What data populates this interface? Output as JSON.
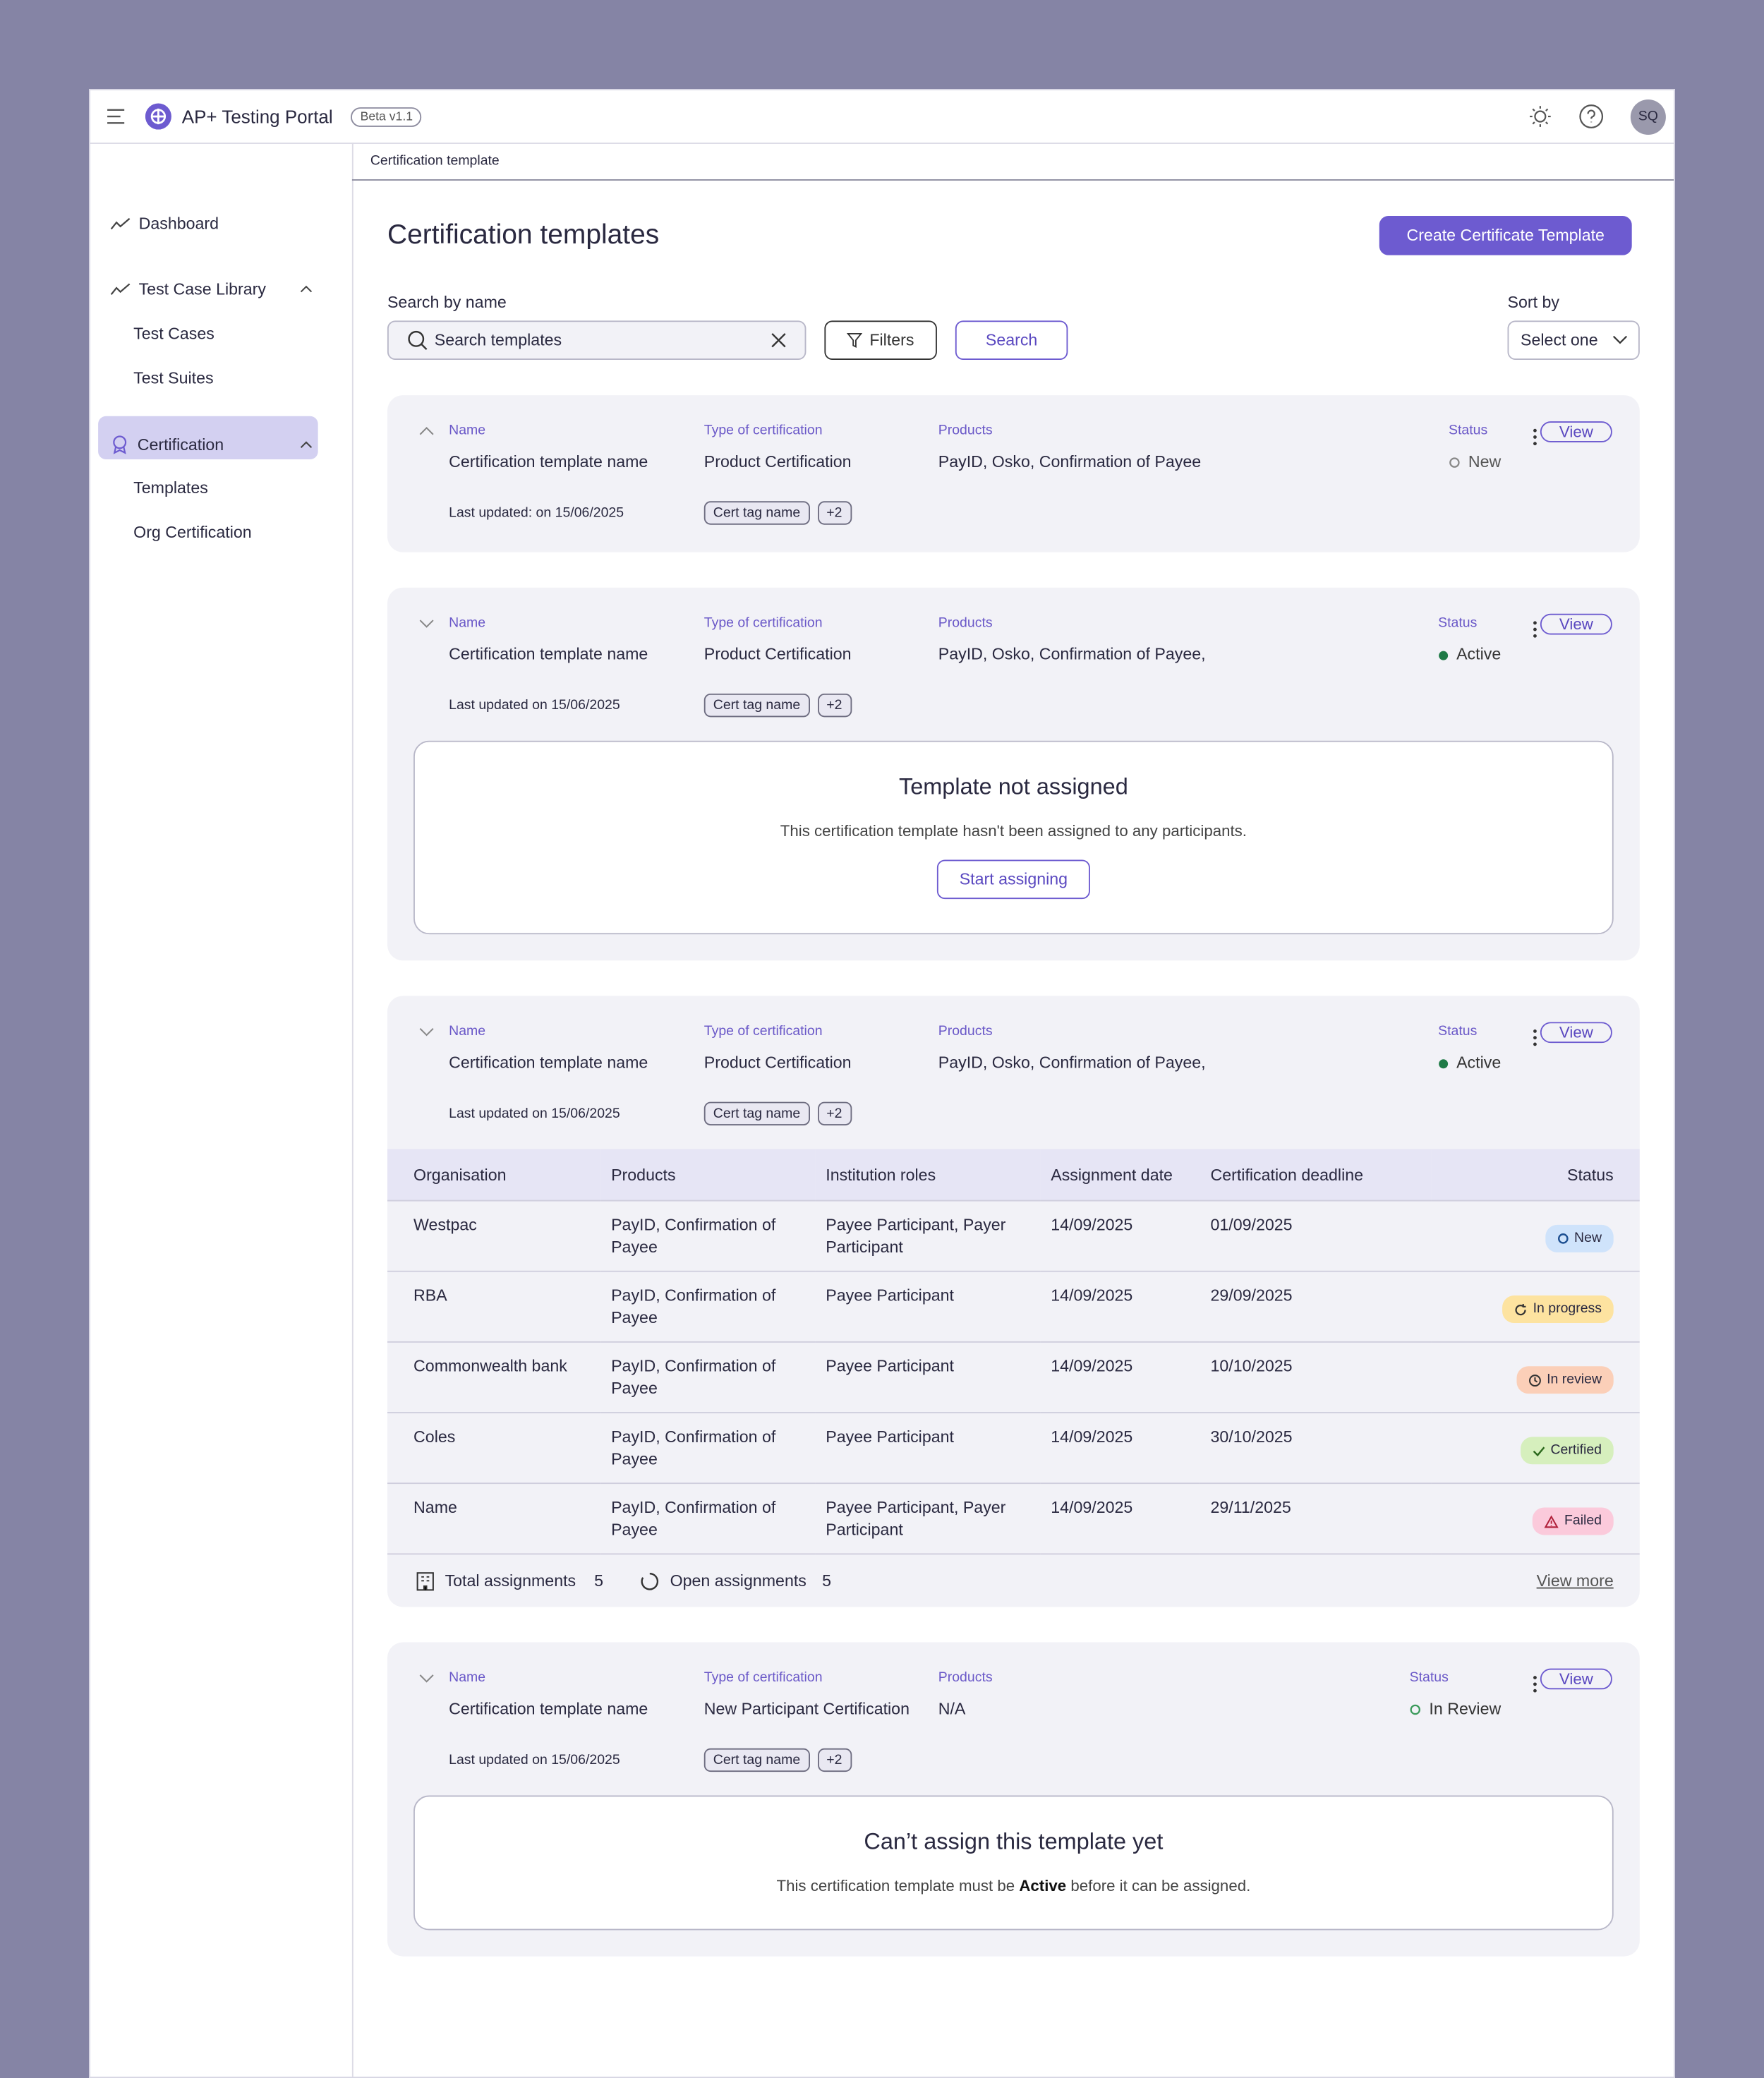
{
  "header": {
    "app_name": "AP+ Testing Portal",
    "badge": "Beta v1.1",
    "avatar": "SQ"
  },
  "sidebar": {
    "items": [
      {
        "label": "Dashboard"
      },
      {
        "label": "Test Case Library",
        "children": [
          "Test Cases",
          "Test Suites"
        ]
      },
      {
        "label": "Certification",
        "children": [
          "Templates",
          "Org Certification"
        ]
      }
    ]
  },
  "breadcrumb": "Certification template",
  "page": {
    "title": "Certification templates",
    "create_button": "Create Certificate Template",
    "search_label": "Search by name",
    "search_placeholder": "Search templates",
    "filters_button": "Filters",
    "search_button": "Search",
    "sort_label": "Sort by",
    "sort_value": "Select one"
  },
  "cards": [
    {
      "name_label": "Name",
      "name": "Certification template name",
      "type_label": "Type of certification",
      "type": "Product Certification",
      "products_label": "Products",
      "products": "PayID, Osko, Confirmation of Payee",
      "status_label": "Status",
      "status": "New",
      "last_updated": "Last updated: on 15/06/2025",
      "tag": "Cert tag name",
      "tag_more": "+2",
      "action": "View"
    },
    {
      "name_label": "Name",
      "name": "Certification template name",
      "type_label": "Type of certification",
      "type": "Product Certification",
      "products_label": "Products",
      "products": "PayID, Osko, Confirmation of Payee,",
      "status_label": "Status",
      "status": "Active",
      "last_updated": "Last updated on 15/06/2025",
      "tag": "Cert tag name",
      "tag_more": "+2",
      "action": "View",
      "empty_state": {
        "title": "Template not assigned",
        "text": "This certification template hasn't been assigned to any participants.",
        "button": "Start assigning"
      }
    },
    {
      "name_label": "Name",
      "name": "Certification template name",
      "type_label": "Type of certification",
      "type": "Product Certification",
      "products_label": "Products",
      "products": "PayID, Osko, Confirmation of Payee,",
      "status_label": "Status",
      "status": "Active",
      "last_updated": "Last updated on 15/06/2025",
      "tag": "Cert tag name",
      "tag_more": "+2",
      "action": "View",
      "table": {
        "columns": [
          "Organisation",
          "Products",
          "Institution roles",
          "Assignment date",
          "Certification deadline",
          "Status"
        ],
        "rows": [
          [
            "Westpac",
            "PayID, Confirmation of Payee",
            "Payee Participant, Payer Participant",
            "14/09/2025",
            "01/09/2025",
            "New"
          ],
          [
            "RBA",
            "PayID, Confirmation of Payee",
            "Payee Participant",
            "14/09/2025",
            "29/09/2025",
            "In progress"
          ],
          [
            "Commonwealth bank",
            "PayID, Confirmation of Payee",
            "Payee Participant",
            "14/09/2025",
            "10/10/2025",
            "In review"
          ],
          [
            "Coles",
            "PayID, Confirmation of Payee",
            "Payee Participant",
            "14/09/2025",
            "30/10/2025",
            "Certified"
          ],
          [
            "Name",
            "PayID, Confirmation of Payee",
            "Payee Participant, Payer Participant",
            "14/09/2025",
            "29/11/2025",
            "Failed"
          ]
        ],
        "footer": {
          "total_label": "Total assignments",
          "total": 5,
          "open_label": "Open assignments",
          "open": 5,
          "link": "View more"
        }
      }
    },
    {
      "name_label": "Name",
      "name": "Certification template name",
      "type_label": "Type of certification",
      "type": "New Participant Certification",
      "products_label": "Products",
      "products": "N/A",
      "status_label": "Status",
      "status": "In Review",
      "last_updated": "Last updated on 15/06/2025",
      "tag": "Cert tag name",
      "tag_more": "+2",
      "action": "View",
      "empty_state": {
        "title": "Can’t assign this template yet",
        "text_before": "This certification template must be",
        "text_bold": "Active",
        "text_after": "before it can be assigned."
      }
    }
  ]
}
